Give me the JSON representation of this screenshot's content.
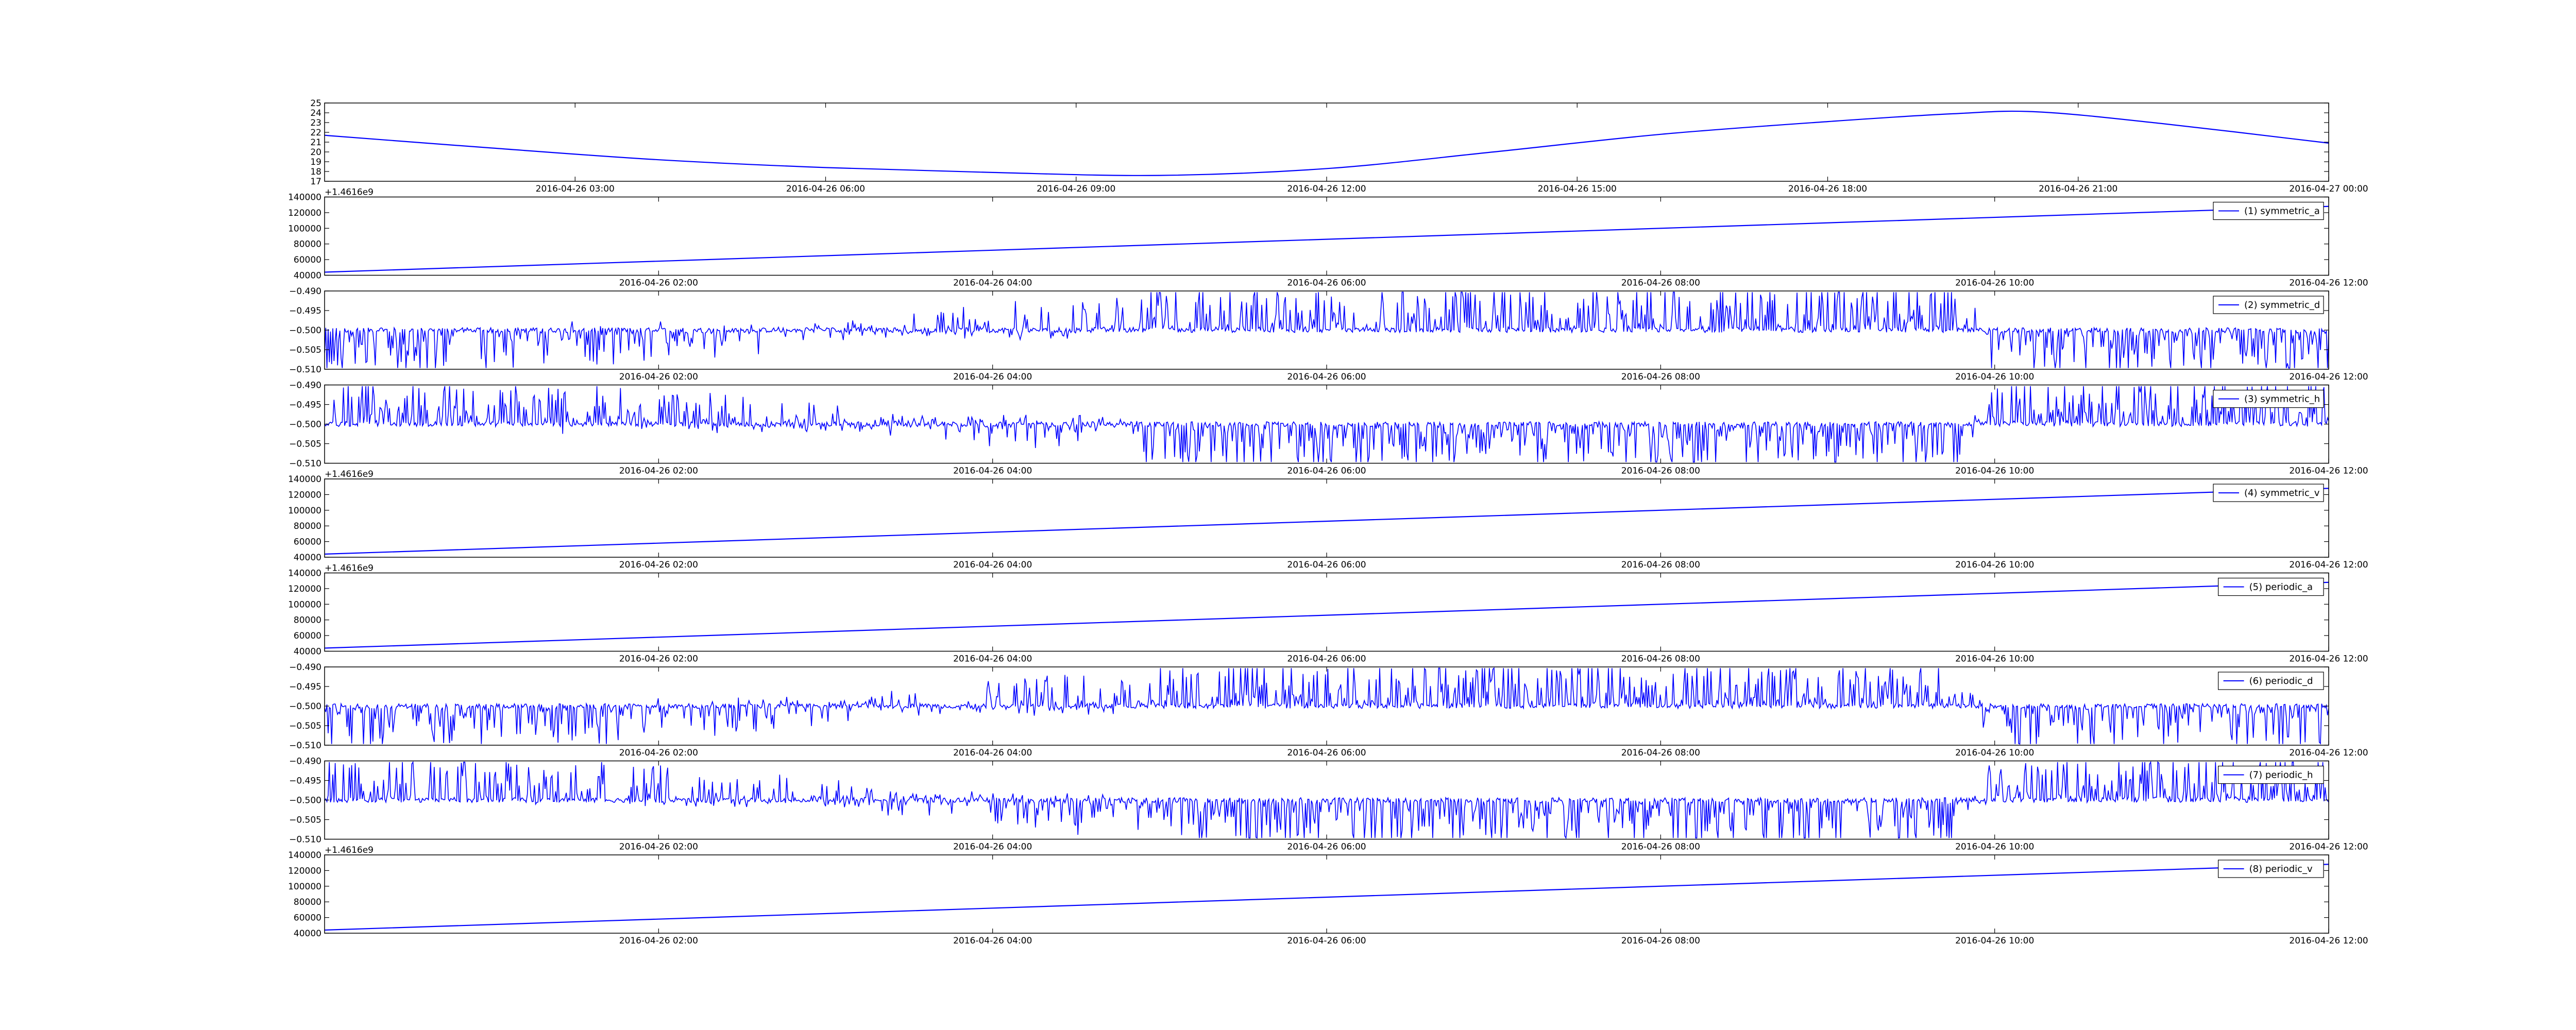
{
  "chart_data": [
    {
      "type": "line",
      "x_type": "datetime",
      "xlim": [
        "2016-04-26 00:00",
        "2016-04-27 00:00"
      ],
      "xticks": [
        "2016-04-26 03:00",
        "2016-04-26 06:00",
        "2016-04-26 09:00",
        "2016-04-26 12:00",
        "2016-04-26 15:00",
        "2016-04-26 18:00",
        "2016-04-26 21:00",
        "2016-04-27 00:00"
      ],
      "ylim": [
        17,
        25
      ],
      "yticks": [
        "17",
        "18",
        "19",
        "20",
        "21",
        "22",
        "23",
        "24",
        "25"
      ],
      "offset_label": "",
      "grid": false,
      "legend": null,
      "color": "#0000ff",
      "series": [
        {
          "x": [
            "2016-04-26 00:00",
            "2016-04-26 02:00",
            "2016-04-26 04:00",
            "2016-04-26 06:00",
            "2016-04-26 08:00",
            "2016-04-26 10:00",
            "2016-04-26 12:00",
            "2016-04-26 14:00",
            "2016-04-26 16:00",
            "2016-04-26 18:00",
            "2016-04-26 19:30",
            "2016-04-26 20:30",
            "2016-04-26 22:00",
            "2016-04-27 00:00"
          ],
          "y": [
            21.7,
            20.4,
            19.2,
            18.4,
            17.9,
            17.6,
            18.3,
            20.0,
            21.8,
            23.1,
            23.9,
            24.1,
            22.9,
            20.9
          ]
        }
      ]
    },
    {
      "type": "line",
      "x_type": "datetime",
      "xlim": [
        "2016-04-26 00:00",
        "2016-04-26 12:00"
      ],
      "xticks": [
        "2016-04-26 02:00",
        "2016-04-26 04:00",
        "2016-04-26 06:00",
        "2016-04-26 08:00",
        "2016-04-26 10:00",
        "2016-04-26 12:00"
      ],
      "ylim": [
        40000,
        140000
      ],
      "yticks": [
        "40000",
        "60000",
        "80000",
        "100000",
        "120000",
        "140000"
      ],
      "offset_label": "+1.4616e9",
      "grid": false,
      "legend": "top-right",
      "color": "#0000ff",
      "series": [
        {
          "name": "(1) symmetric_a",
          "x": [
            "2016-04-26 00:00",
            "2016-04-26 12:00"
          ],
          "y": [
            44000,
            128000
          ]
        }
      ]
    },
    {
      "type": "line",
      "x_type": "datetime",
      "signal": "noise",
      "xlim": [
        "2016-04-26 00:00",
        "2016-04-26 12:00"
      ],
      "xticks": [
        "2016-04-26 02:00",
        "2016-04-26 04:00",
        "2016-04-26 06:00",
        "2016-04-26 08:00",
        "2016-04-26 10:00",
        "2016-04-26 12:00"
      ],
      "ylim": [
        -0.51,
        -0.49
      ],
      "yticks": [
        "−0.510",
        "−0.505",
        "−0.500",
        "−0.495",
        "−0.490"
      ],
      "offset_label": "",
      "grid": false,
      "legend": "top-right",
      "color": "#0000ff",
      "series": [
        {
          "name": "(2) symmetric_d",
          "baseline": -0.5,
          "envelope": [
            [
              0,
              -1
            ],
            [
              1.8,
              -0.7
            ],
            [
              5.5,
              1
            ],
            [
              9.8,
              1
            ],
            [
              10,
              -1
            ],
            [
              12,
              -1
            ]
          ]
        }
      ]
    },
    {
      "type": "line",
      "x_type": "datetime",
      "signal": "noise",
      "xlim": [
        "2016-04-26 00:00",
        "2016-04-26 12:00"
      ],
      "xticks": [
        "2016-04-26 02:00",
        "2016-04-26 04:00",
        "2016-04-26 06:00",
        "2016-04-26 08:00",
        "2016-04-26 10:00",
        "2016-04-26 12:00"
      ],
      "ylim": [
        -0.51,
        -0.49
      ],
      "yticks": [
        "−0.510",
        "−0.505",
        "−0.500",
        "−0.495",
        "−0.490"
      ],
      "offset_label": "",
      "grid": false,
      "legend": "top-right",
      "color": "#0000ff",
      "series": [
        {
          "name": "(3) symmetric_h",
          "baseline": -0.5,
          "envelope": [
            [
              0,
              1
            ],
            [
              1.8,
              0.7
            ],
            [
              5.5,
              -1
            ],
            [
              9.8,
              -1
            ],
            [
              10,
              1
            ],
            [
              12,
              1
            ]
          ]
        }
      ]
    },
    {
      "type": "line",
      "x_type": "datetime",
      "xlim": [
        "2016-04-26 00:00",
        "2016-04-26 12:00"
      ],
      "xticks": [
        "2016-04-26 02:00",
        "2016-04-26 04:00",
        "2016-04-26 06:00",
        "2016-04-26 08:00",
        "2016-04-26 10:00",
        "2016-04-26 12:00"
      ],
      "ylim": [
        40000,
        140000
      ],
      "yticks": [
        "40000",
        "60000",
        "80000",
        "100000",
        "120000",
        "140000"
      ],
      "offset_label": "+1.4616e9",
      "grid": false,
      "legend": "top-right",
      "color": "#0000ff",
      "series": [
        {
          "name": "(4) symmetric_v",
          "x": [
            "2016-04-26 00:00",
            "2016-04-26 12:00"
          ],
          "y": [
            44000,
            128000
          ]
        }
      ]
    },
    {
      "type": "line",
      "x_type": "datetime",
      "xlim": [
        "2016-04-26 00:00",
        "2016-04-26 12:00"
      ],
      "xticks": [
        "2016-04-26 02:00",
        "2016-04-26 04:00",
        "2016-04-26 06:00",
        "2016-04-26 08:00",
        "2016-04-26 10:00",
        "2016-04-26 12:00"
      ],
      "ylim": [
        40000,
        140000
      ],
      "yticks": [
        "40000",
        "60000",
        "80000",
        "100000",
        "120000",
        "140000"
      ],
      "offset_label": "+1.4616e9",
      "grid": false,
      "legend": "top-right",
      "color": "#0000ff",
      "series": [
        {
          "name": "(5) periodic_a",
          "x": [
            "2016-04-26 00:00",
            "2016-04-26 12:00"
          ],
          "y": [
            44000,
            128000
          ]
        }
      ]
    },
    {
      "type": "line",
      "x_type": "datetime",
      "signal": "noise",
      "xlim": [
        "2016-04-26 00:00",
        "2016-04-26 12:00"
      ],
      "xticks": [
        "2016-04-26 02:00",
        "2016-04-26 04:00",
        "2016-04-26 06:00",
        "2016-04-26 08:00",
        "2016-04-26 10:00",
        "2016-04-26 12:00"
      ],
      "ylim": [
        -0.51,
        -0.49
      ],
      "yticks": [
        "−0.510",
        "−0.505",
        "−0.500",
        "−0.495",
        "−0.490"
      ],
      "offset_label": "",
      "grid": false,
      "legend": "top-right",
      "color": "#0000ff",
      "series": [
        {
          "name": "(6) periodic_d",
          "baseline": -0.5,
          "envelope": [
            [
              0,
              -1
            ],
            [
              1.8,
              -0.7
            ],
            [
              5.5,
              1
            ],
            [
              9.8,
              1
            ],
            [
              10,
              -1
            ],
            [
              12,
              -1
            ]
          ]
        }
      ]
    },
    {
      "type": "line",
      "x_type": "datetime",
      "signal": "noise",
      "xlim": [
        "2016-04-26 00:00",
        "2016-04-26 12:00"
      ],
      "xticks": [
        "2016-04-26 02:00",
        "2016-04-26 04:00",
        "2016-04-26 06:00",
        "2016-04-26 08:00",
        "2016-04-26 10:00",
        "2016-04-26 12:00"
      ],
      "ylim": [
        -0.51,
        -0.49
      ],
      "yticks": [
        "−0.510",
        "−0.505",
        "−0.500",
        "−0.495",
        "−0.490"
      ],
      "offset_label": "",
      "grid": false,
      "legend": "top-right",
      "color": "#0000ff",
      "series": [
        {
          "name": "(7) periodic_h",
          "baseline": -0.5,
          "envelope": [
            [
              0,
              1
            ],
            [
              1.8,
              0.7
            ],
            [
              5.5,
              -1
            ],
            [
              9.8,
              -1
            ],
            [
              10,
              1
            ],
            [
              12,
              1
            ]
          ]
        }
      ]
    },
    {
      "type": "line",
      "x_type": "datetime",
      "xlim": [
        "2016-04-26 00:00",
        "2016-04-26 12:00"
      ],
      "xticks": [
        "2016-04-26 02:00",
        "2016-04-26 04:00",
        "2016-04-26 06:00",
        "2016-04-26 08:00",
        "2016-04-26 10:00",
        "2016-04-26 12:00"
      ],
      "ylim": [
        40000,
        140000
      ],
      "yticks": [
        "40000",
        "60000",
        "80000",
        "100000",
        "120000",
        "140000"
      ],
      "offset_label": "+1.4616e9",
      "grid": false,
      "legend": "top-right",
      "color": "#0000ff",
      "series": [
        {
          "name": "(8) periodic_v",
          "x": [
            "2016-04-26 00:00",
            "2016-04-26 12:00"
          ],
          "y": [
            44000,
            128000
          ]
        }
      ]
    }
  ]
}
